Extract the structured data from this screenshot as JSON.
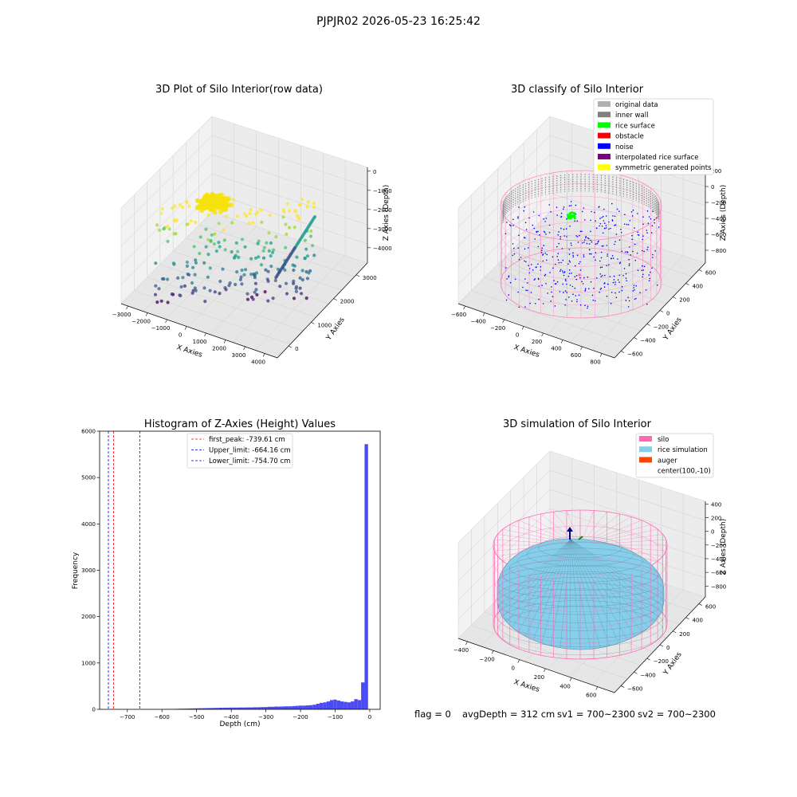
{
  "suptitle": "PJPJR02 2026-05-23 16:25:42",
  "panels": {
    "raw": {
      "title": "3D Plot of Silo Interior(row data)",
      "xlabel": "X Axies",
      "ylabel": "Y Axies",
      "zlabel": "Z Axies (Depth)",
      "xticks": [
        "−3000",
        "−2000",
        "−1000",
        "0",
        "1000",
        "2000",
        "3000",
        "4000"
      ],
      "yticks": [
        "0",
        "1000",
        "2000",
        "3000"
      ],
      "zticks": [
        "0",
        "−1000",
        "−2000",
        "−3000",
        "−4000"
      ]
    },
    "classify": {
      "title": "3D classify of Silo Interior",
      "xlabel": "X Axies",
      "ylabel": "Y Axies",
      "zlabel": "Z Axies (Depth)",
      "xticks": [
        "−600",
        "−400",
        "−200",
        "0",
        "200",
        "400",
        "600",
        "800"
      ],
      "yticks": [
        "−600",
        "−400",
        "−200",
        "0",
        "200",
        "400",
        "600"
      ],
      "zticks": [
        "200",
        "0",
        "−200",
        "−400",
        "−600",
        "−800"
      ],
      "legend": [
        {
          "label": "original data",
          "color": "#b0b0b0"
        },
        {
          "label": "inner wall",
          "color": "#808080"
        },
        {
          "label": "rice surface",
          "color": "#00ff00"
        },
        {
          "label": "obstacle",
          "color": "#ff0000"
        },
        {
          "label": "noise",
          "color": "#0000ff"
        },
        {
          "label": "interpolated rice surface",
          "color": "#800080"
        },
        {
          "label": "symmetric generated points",
          "color": "#ffff00"
        }
      ]
    },
    "simulation": {
      "title": "3D simulation of Silo Interior",
      "xlabel": "X Axies",
      "ylabel": "Y Axies",
      "zlabel": "Z Axies (Depth)",
      "xticks": [
        "−400",
        "−200",
        "0",
        "200",
        "400",
        "600"
      ],
      "yticks": [
        "−600",
        "−400",
        "−200",
        "0",
        "200",
        "400",
        "600"
      ],
      "zticks": [
        "400",
        "200",
        "0",
        "−200",
        "−400",
        "−600",
        "−800"
      ],
      "legend": [
        {
          "label": "silo",
          "color": "#ff69b4"
        },
        {
          "label": "rice simulation",
          "color": "#87ceeb"
        },
        {
          "label": "auger",
          "color": "#ff4500"
        },
        {
          "label": "center(100,-10)",
          "color": ""
        }
      ]
    }
  },
  "status_line": {
    "flag": "flag = 0",
    "avg_depth": "avgDepth = 312 cm",
    "sv1": "sv1 = 700~2300",
    "sv2": "sv2 = 700~2300"
  },
  "chart_data": [
    {
      "type": "bar",
      "title": "Histogram of Z-Axies (Height) Values",
      "xlabel": "Depth (cm)",
      "ylabel": "Frequency",
      "xlim": [
        -780,
        30
      ],
      "ylim": [
        0,
        6000
      ],
      "xticks": [
        -700,
        -600,
        -500,
        -400,
        -300,
        -200,
        -100,
        0
      ],
      "xtick_labels": [
        "−700",
        "−600",
        "−500",
        "−400",
        "−300",
        "−200",
        "−100",
        "0"
      ],
      "yticks": [
        0,
        1000,
        2000,
        3000,
        4000,
        5000,
        6000
      ],
      "bin_width": 10,
      "bins": [
        {
          "x": -590,
          "count": 5
        },
        {
          "x": -580,
          "count": 8
        },
        {
          "x": -570,
          "count": 6
        },
        {
          "x": -560,
          "count": 10
        },
        {
          "x": -550,
          "count": 12
        },
        {
          "x": -540,
          "count": 14
        },
        {
          "x": -530,
          "count": 15
        },
        {
          "x": -520,
          "count": 18
        },
        {
          "x": -510,
          "count": 20
        },
        {
          "x": -500,
          "count": 22
        },
        {
          "x": -490,
          "count": 24
        },
        {
          "x": -480,
          "count": 25
        },
        {
          "x": -470,
          "count": 27
        },
        {
          "x": -460,
          "count": 28
        },
        {
          "x": -450,
          "count": 30
        },
        {
          "x": -440,
          "count": 32
        },
        {
          "x": -430,
          "count": 34
        },
        {
          "x": -420,
          "count": 35
        },
        {
          "x": -410,
          "count": 36
        },
        {
          "x": -400,
          "count": 38
        },
        {
          "x": -390,
          "count": 38
        },
        {
          "x": -380,
          "count": 38
        },
        {
          "x": -370,
          "count": 40
        },
        {
          "x": -360,
          "count": 40
        },
        {
          "x": -350,
          "count": 42
        },
        {
          "x": -340,
          "count": 42
        },
        {
          "x": -330,
          "count": 45
        },
        {
          "x": -320,
          "count": 45
        },
        {
          "x": -310,
          "count": 48
        },
        {
          "x": -300,
          "count": 50
        },
        {
          "x": -290,
          "count": 55
        },
        {
          "x": -280,
          "count": 55
        },
        {
          "x": -270,
          "count": 60
        },
        {
          "x": -260,
          "count": 60
        },
        {
          "x": -250,
          "count": 62
        },
        {
          "x": -240,
          "count": 65
        },
        {
          "x": -230,
          "count": 65
        },
        {
          "x": -220,
          "count": 70
        },
        {
          "x": -210,
          "count": 75
        },
        {
          "x": -200,
          "count": 80
        },
        {
          "x": -190,
          "count": 80
        },
        {
          "x": -180,
          "count": 85
        },
        {
          "x": -170,
          "count": 90
        },
        {
          "x": -160,
          "count": 100
        },
        {
          "x": -150,
          "count": 120
        },
        {
          "x": -140,
          "count": 140
        },
        {
          "x": -130,
          "count": 150
        },
        {
          "x": -120,
          "count": 170
        },
        {
          "x": -110,
          "count": 200
        },
        {
          "x": -100,
          "count": 210
        },
        {
          "x": -90,
          "count": 190
        },
        {
          "x": -80,
          "count": 170
        },
        {
          "x": -70,
          "count": 160
        },
        {
          "x": -60,
          "count": 150
        },
        {
          "x": -50,
          "count": 170
        },
        {
          "x": -40,
          "count": 220
        },
        {
          "x": -30,
          "count": 200
        },
        {
          "x": -20,
          "count": 580
        },
        {
          "x": -10,
          "count": 5720
        }
      ],
      "vlines": [
        {
          "label": "first_peak: -739.61 cm",
          "x": -739.61,
          "color": "#ff0000"
        },
        {
          "label": "Upper_limit: -664.16 cm",
          "x": -664.16,
          "color": "#0000ff"
        },
        {
          "label": "Lower_limit: -754.70 cm",
          "x": -754.7,
          "color": "#0000ff"
        }
      ],
      "legend_position": "upper center",
      "bar_color": "#4b4bf5"
    }
  ]
}
